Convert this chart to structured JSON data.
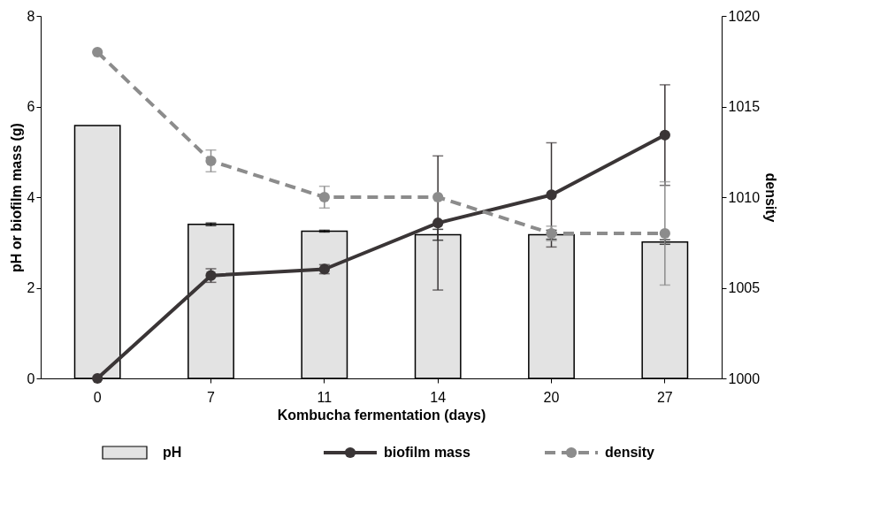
{
  "chart_data": {
    "type": "bar",
    "xlabel": "Kombucha fermentation (days)",
    "ylabel": "pH or biofilm mass (g)",
    "y2label": "density",
    "categories": [
      "0",
      "7",
      "11",
      "14",
      "20",
      "27"
    ],
    "series": [
      {
        "name": "pH",
        "color": "#e3e3e3",
        "values": [
          5.58,
          3.4,
          3.25,
          3.17,
          3.17,
          3.01
        ],
        "errors": [
          null,
          0.03,
          0.02,
          0.12,
          0.1,
          0.05
        ]
      },
      {
        "name": "biofilm mass",
        "type": "line",
        "color": "#3a3536",
        "marker": "circle",
        "line_style": "solid",
        "values": [
          0,
          2.27,
          2.41,
          3.43,
          4.05,
          5.37
        ],
        "errors": [
          null,
          0.15,
          0.1,
          1.48,
          1.15,
          1.11
        ]
      },
      {
        "name": "density",
        "type": "line",
        "axis": "y2",
        "color": "#8c8c8c",
        "marker": "circle",
        "line_style": "dashed",
        "values": [
          1018,
          1012,
          1010,
          1010,
          1008,
          1008
        ],
        "errors": [
          null,
          0.6,
          0.6,
          null,
          0.4,
          2.85
        ]
      }
    ],
    "ylim": [
      0,
      8
    ],
    "yticks": [
      0,
      2,
      4,
      6,
      8
    ],
    "y2lim": [
      1000,
      1020
    ],
    "y2ticks": [
      {
        "value": 1000,
        "label": "1000"
      },
      {
        "value": 1005,
        "label": "1005"
      },
      {
        "value": 1010,
        "label": "1010"
      },
      {
        "value": 1015,
        "label": "1015"
      },
      {
        "value": 1020,
        "label": "1020"
      }
    ],
    "grid": false,
    "legend": "bottom"
  }
}
